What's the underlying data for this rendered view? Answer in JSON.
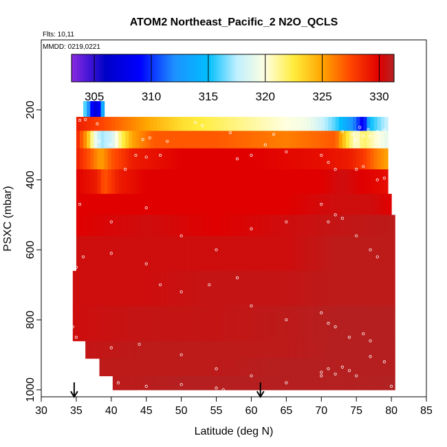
{
  "chart_data": {
    "type": "heatmap",
    "title": "ATOM2 Northeast_Pacific_2 N2O_QCLS",
    "subtitle_flights": "Flts: 10,11",
    "subtitle_dates": "MMDD: 0219,0221",
    "xlabel": "Latitude (deg N)",
    "ylabel": "PSXC (mbar)",
    "xlim": [
      30,
      85
    ],
    "ylim": [
      1020,
      0
    ],
    "x_ticks": [
      "30",
      "35",
      "40",
      "45",
      "50",
      "55",
      "60",
      "65",
      "70",
      "75",
      "80",
      "85"
    ],
    "y_ticks": [
      "200",
      "400",
      "600",
      "800",
      "1000"
    ],
    "colorbar": {
      "range": [
        303,
        331.3
      ],
      "ticks": [
        "305",
        "310",
        "315",
        "320",
        "325",
        "330"
      ],
      "stops": [
        {
          "v": 303,
          "c": "#8a2be2"
        },
        {
          "v": 306,
          "c": "#0000c8"
        },
        {
          "v": 309,
          "c": "#0000ff"
        },
        {
          "v": 312,
          "c": "#1e90ff"
        },
        {
          "v": 315,
          "c": "#00bfff"
        },
        {
          "v": 317.5,
          "c": "#bfefff"
        },
        {
          "v": 320,
          "c": "#ffffe0"
        },
        {
          "v": 322.5,
          "c": "#ffec3c"
        },
        {
          "v": 325,
          "c": "#ffa500"
        },
        {
          "v": 327.5,
          "c": "#ff4500"
        },
        {
          "v": 330,
          "c": "#e00000"
        },
        {
          "v": 331.3,
          "c": "#b22222"
        }
      ]
    },
    "flight_markers_lat": [
      34.7,
      61.3
    ],
    "layers": [
      {
        "p": [
          175,
          220
        ],
        "pts": [
          [
            36,
            318
          ],
          [
            37,
            310
          ],
          [
            38,
            306
          ],
          [
            39,
            316
          ]
        ]
      },
      {
        "p": [
          220,
          260
        ],
        "pts": [
          [
            35,
            329
          ],
          [
            40,
            327
          ],
          [
            45,
            325
          ],
          [
            50,
            323
          ],
          [
            55,
            322
          ],
          [
            60,
            321
          ],
          [
            65,
            320
          ],
          [
            68,
            319.5
          ],
          [
            70,
            318
          ],
          [
            72,
            316
          ],
          [
            74,
            313
          ],
          [
            75,
            311
          ],
          [
            76,
            308
          ],
          [
            77,
            315
          ],
          [
            79.5,
            318
          ]
        ]
      },
      {
        "p": [
          260,
          310
        ],
        "pts": [
          [
            35,
            329
          ],
          [
            36.5,
            325
          ],
          [
            37.5,
            320
          ],
          [
            38.5,
            317
          ],
          [
            40,
            318
          ],
          [
            41.5,
            322
          ],
          [
            43,
            325
          ],
          [
            46,
            327
          ],
          [
            55,
            327
          ],
          [
            65,
            326
          ],
          [
            72,
            327
          ],
          [
            74,
            322
          ],
          [
            75,
            320
          ],
          [
            76,
            322
          ],
          [
            78,
            320
          ],
          [
            79.5,
            319
          ]
        ]
      },
      {
        "p": [
          310,
          370
        ],
        "pts": [
          [
            35,
            329
          ],
          [
            37,
            327
          ],
          [
            38.5,
            325
          ],
          [
            40,
            327
          ],
          [
            43,
            329
          ],
          [
            50,
            330
          ],
          [
            60,
            330
          ],
          [
            70,
            329.5
          ],
          [
            74,
            329
          ],
          [
            76,
            328
          ],
          [
            78,
            326
          ],
          [
            79.5,
            325
          ]
        ]
      },
      {
        "p": [
          370,
          440
        ],
        "pts": [
          [
            35,
            330
          ],
          [
            38,
            329
          ],
          [
            39,
            327
          ],
          [
            41,
            329
          ],
          [
            45,
            330
          ],
          [
            60,
            330
          ],
          [
            70,
            330
          ],
          [
            73,
            330.5
          ],
          [
            76,
            330
          ],
          [
            79.5,
            329.5
          ]
        ]
      },
      {
        "p": [
          440,
          500
        ],
        "pts": [
          [
            35,
            330
          ],
          [
            45,
            330
          ],
          [
            55,
            330
          ],
          [
            65,
            330
          ],
          [
            72,
            330.5
          ],
          [
            77,
            330.5
          ],
          [
            80,
            330
          ]
        ]
      },
      {
        "p": [
          500,
          560
        ],
        "pts": [
          [
            35,
            330
          ],
          [
            45,
            330.5
          ],
          [
            55,
            330
          ],
          [
            65,
            330.5
          ],
          [
            72,
            330.8
          ],
          [
            80.5,
            331
          ]
        ]
      },
      {
        "p": [
          560,
          660
        ],
        "pts": [
          [
            35,
            330.5
          ],
          [
            45,
            330.5
          ],
          [
            55,
            330.5
          ],
          [
            65,
            330.5
          ],
          [
            72,
            331
          ],
          [
            80.5,
            331
          ]
        ]
      },
      {
        "p": [
          660,
          760
        ],
        "pts": [
          [
            34.5,
            330.5
          ],
          [
            45,
            330.5
          ],
          [
            55,
            330.8
          ],
          [
            65,
            330.8
          ],
          [
            72,
            331
          ],
          [
            80.5,
            331
          ]
        ]
      },
      {
        "p": [
          760,
          860
        ],
        "pts": [
          [
            34.5,
            330.5
          ],
          [
            45,
            330.8
          ],
          [
            55,
            330.8
          ],
          [
            65,
            331
          ],
          [
            72,
            331.2
          ],
          [
            80.5,
            331.2
          ]
        ]
      },
      {
        "p": [
          860,
          910
        ],
        "pts": [
          [
            36.3,
            330.8
          ],
          [
            45,
            331
          ],
          [
            55,
            331
          ],
          [
            65,
            331
          ],
          [
            72,
            331.2
          ],
          [
            80.5,
            331.2
          ]
        ]
      },
      {
        "p": [
          910,
          960
        ],
        "pts": [
          [
            38.3,
            331
          ],
          [
            45,
            331
          ],
          [
            55,
            331
          ],
          [
            65,
            331.2
          ],
          [
            72,
            331.2
          ],
          [
            80.5,
            331.2
          ]
        ]
      },
      {
        "p": [
          960,
          1000
        ],
        "pts": [
          [
            40.2,
            331
          ],
          [
            50,
            331.2
          ],
          [
            60,
            331.2
          ],
          [
            70,
            331.2
          ],
          [
            80.5,
            331.3
          ]
        ]
      }
    ],
    "sample_points": [
      [
        35.5,
        230
      ],
      [
        36.3,
        228
      ],
      [
        38.0,
        240
      ],
      [
        44.5,
        285
      ],
      [
        45.5,
        280
      ],
      [
        48,
        290
      ],
      [
        52,
        236
      ],
      [
        53,
        245
      ],
      [
        57,
        265
      ],
      [
        62,
        300
      ],
      [
        63.2,
        270
      ],
      [
        73,
        262
      ],
      [
        74.5,
        270
      ],
      [
        74.8,
        287
      ],
      [
        76,
        275
      ],
      [
        77,
        275
      ],
      [
        78,
        262
      ],
      [
        79,
        258
      ],
      [
        75.5,
        250
      ],
      [
        76.7,
        256
      ],
      [
        38.2,
        290
      ],
      [
        39.8,
        300
      ],
      [
        42,
        370
      ],
      [
        43.5,
        330
      ],
      [
        45,
        335
      ],
      [
        47,
        330
      ],
      [
        58,
        340
      ],
      [
        60,
        330
      ],
      [
        65,
        320
      ],
      [
        70,
        330
      ],
      [
        71,
        350
      ],
      [
        72,
        370
      ],
      [
        75,
        370
      ],
      [
        76,
        362
      ],
      [
        78,
        400
      ],
      [
        79,
        395
      ],
      [
        35.5,
        470
      ],
      [
        40,
        520
      ],
      [
        45,
        480
      ],
      [
        50,
        560
      ],
      [
        55,
        600
      ],
      [
        60,
        540
      ],
      [
        65,
        520
      ],
      [
        70,
        470
      ],
      [
        71,
        520
      ],
      [
        72,
        500
      ],
      [
        73,
        510
      ],
      [
        75,
        560
      ],
      [
        77,
        600
      ],
      [
        78,
        620
      ],
      [
        35,
        650
      ],
      [
        36,
        620
      ],
      [
        40,
        610
      ],
      [
        45,
        640
      ],
      [
        47,
        700
      ],
      [
        50,
        720
      ],
      [
        54,
        700
      ],
      [
        58,
        680
      ],
      [
        60,
        760
      ],
      [
        65,
        800
      ],
      [
        70,
        780
      ],
      [
        71,
        810
      ],
      [
        72,
        820
      ],
      [
        74,
        850
      ],
      [
        76,
        840
      ],
      [
        77,
        860
      ],
      [
        34.5,
        820
      ],
      [
        35,
        850
      ],
      [
        40,
        880
      ],
      [
        44,
        870
      ],
      [
        50,
        900
      ],
      [
        55,
        940
      ],
      [
        60,
        960
      ],
      [
        65,
        980
      ],
      [
        70,
        950
      ],
      [
        71,
        940
      ],
      [
        72,
        955
      ],
      [
        73,
        935
      ],
      [
        74,
        945
      ],
      [
        75,
        960
      ],
      [
        77,
        905
      ],
      [
        79,
        920
      ],
      [
        41,
        980
      ],
      [
        45,
        990
      ],
      [
        50,
        985
      ],
      [
        55,
        995
      ],
      [
        56,
        1000
      ],
      [
        44,
        1005
      ],
      [
        44.5,
        1005
      ],
      [
        80,
        990
      ],
      [
        70,
        960
      ]
    ]
  }
}
